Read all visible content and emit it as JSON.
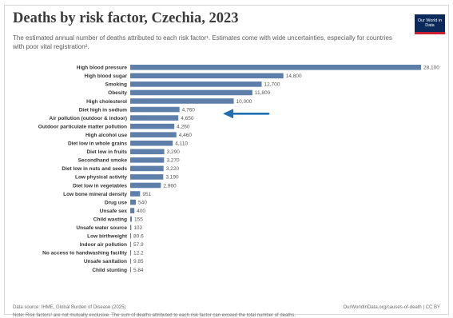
{
  "header": {
    "title": "Deaths by risk factor, Czechia, 2023",
    "subtitle": "The estimated annual number of deaths attributed to each risk factor¹. Estimates come with wide uncertainties, especially for countries with poor vital registration².",
    "logo_text": "Our World in Data"
  },
  "footer": {
    "source": "Data source: IHME, Global Burden of Disease (2025)",
    "url": "OurWorldInData.org/causes-of-death | CC BY",
    "note": "Note: Risk factors¹ are not mutually exclusive. The sum of deaths attributed to each risk factor can exceed the total number of deaths."
  },
  "colors": {
    "bar": "#5f7fab",
    "arrow": "#1f6fb2",
    "label": "#333333",
    "value": "#555555"
  },
  "annotation": {
    "type": "arrow",
    "points_to": [
      "Diet high in sodium",
      "Air pollution (outdoor & indoor)"
    ]
  },
  "chart_data": {
    "type": "bar",
    "orientation": "horizontal",
    "grid": false,
    "categories": [
      "High blood pressure",
      "High blood sugar",
      "Smoking",
      "Obesity",
      "High cholesterol",
      "Diet high in sodium",
      "Air pollution (outdoor & indoor)",
      "Outdoor particulate matter pollution",
      "High alcohol use",
      "Diet low in whole grains",
      "Diet low in fruits",
      "Secondhand smoke",
      "Diet low in nuts and seeds",
      "Low physical activity",
      "Diet low in vegetables",
      "Low bone mineral density",
      "Drug use",
      "Unsafe sex",
      "Child wasting",
      "Unsafe water source",
      "Low birthweight",
      "Indoor air pollution",
      "No access to handwashing facility",
      "Unsafe sanitation",
      "Child stunting"
    ],
    "values": [
      28100,
      14800,
      12700,
      11800,
      10000,
      4760,
      4650,
      4260,
      4460,
      4110,
      3290,
      3270,
      3220,
      3190,
      2960,
      951,
      540,
      400,
      155,
      102,
      80.6,
      57.9,
      12.2,
      9.85,
      5.84
    ],
    "value_labels": [
      "28,100",
      "14,800",
      "12,700",
      "11,800",
      "10,000",
      "4,760",
      "4,650",
      "4,260",
      "4,460",
      "4,110",
      "3,290",
      "3,270",
      "3,220",
      "3,190",
      "2,960",
      "951",
      "540",
      "400",
      "155",
      "102",
      "80.6",
      "57.9",
      "12.2",
      "9.85",
      "5.84"
    ]
  }
}
